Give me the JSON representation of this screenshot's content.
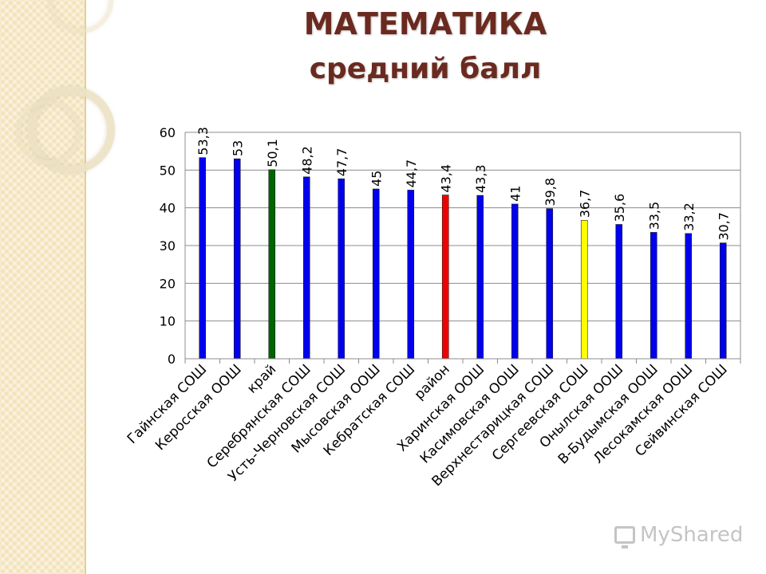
{
  "header": {
    "title": "МАТЕМАТИКА",
    "subtitle": "средний балл"
  },
  "watermark": {
    "text": "MyShared",
    "icon": "projector-screen-icon"
  },
  "colors": {
    "title": "#6b2a1f",
    "school": "#0000ee",
    "region": "#006400",
    "district": "#ee0000",
    "highlight": "#ffff00",
    "panel": "#f3e2b8"
  },
  "chart_data": {
    "type": "bar",
    "title": "",
    "xlabel": "",
    "ylabel": "",
    "ylim": [
      0,
      60
    ],
    "yticks": [
      0,
      10,
      20,
      30,
      40,
      50,
      60
    ],
    "grid": true,
    "legend": "none",
    "categories": [
      "Гайнская СОШ",
      "Керосская ООШ",
      "край",
      "Серебрянская СОШ",
      "Усть-Черновская СОШ",
      "Мысовская ООШ",
      "Кебратская СОШ",
      "район",
      "Харинская ООШ",
      "Касимовская ООШ",
      "Верхнестарицкая СОШ",
      "Сергеевская СОШ",
      "Онылская ООШ",
      "В-Будымская ООШ",
      "Лесокамская ООШ",
      "Сейвинская СОШ"
    ],
    "values": [
      53.3,
      53,
      50.1,
      48.2,
      47.7,
      45,
      44.7,
      43.4,
      43.3,
      41,
      39.8,
      36.7,
      35.6,
      33.5,
      33.2,
      30.7
    ],
    "value_labels": [
      "53,3",
      "53",
      "50,1",
      "48,2",
      "47,7",
      "45",
      "44,7",
      "43,4",
      "43,3",
      "41",
      "39,8",
      "36,7",
      "35,6",
      "33,5",
      "33,2",
      "30,7"
    ],
    "bar_colors": [
      "#0000ee",
      "#0000ee",
      "#006400",
      "#0000ee",
      "#0000ee",
      "#0000ee",
      "#0000ee",
      "#ee0000",
      "#0000ee",
      "#0000ee",
      "#0000ee",
      "#ffff00",
      "#0000ee",
      "#0000ee",
      "#0000ee",
      "#0000ee"
    ]
  }
}
